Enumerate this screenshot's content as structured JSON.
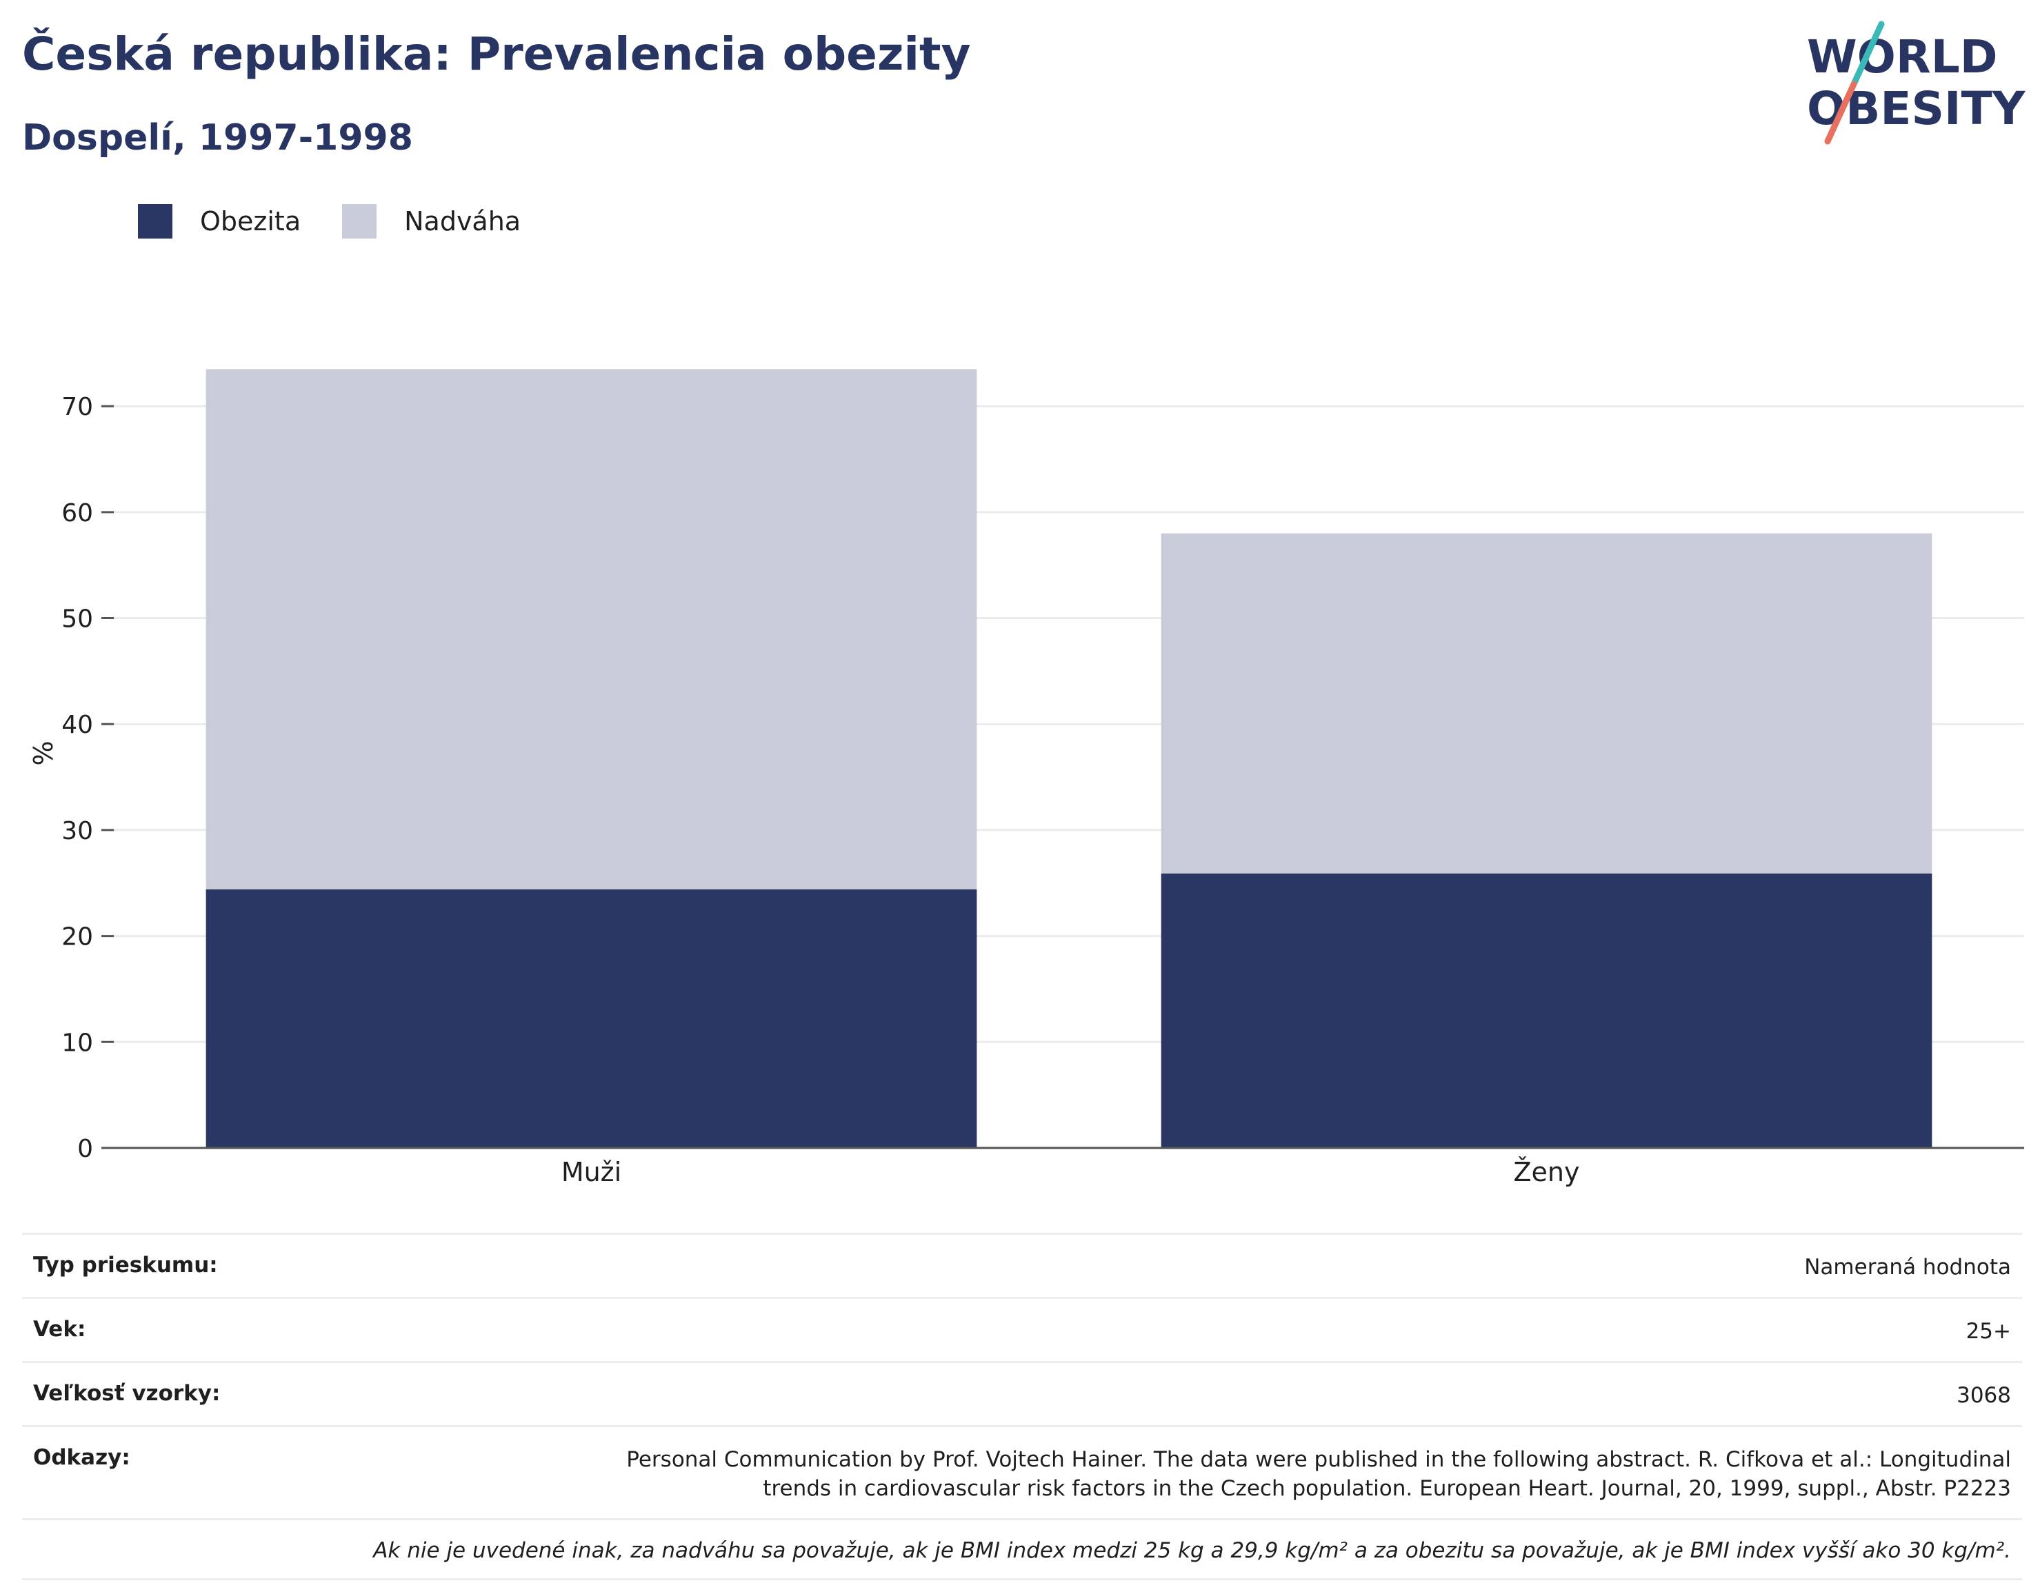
{
  "header": {
    "title": "Česká republika: Prevalencia obezity",
    "subtitle": "Dospelí, 1997-1998"
  },
  "logo": {
    "line1": "WORLD",
    "line2": "OBESITY"
  },
  "colors": {
    "obezita": "#2a3764",
    "nadvaha": "#c9ccd8",
    "text": "#283462",
    "grid": "#ebebee",
    "axis": "#555555",
    "logo_teal": "#3bb8b8",
    "logo_red": "#e8705f"
  },
  "chart_data": {
    "type": "bar",
    "stacked": true,
    "categories": [
      "Muži",
      "Ženy"
    ],
    "series": [
      {
        "name": "Obezita",
        "values": [
          24.4,
          25.9
        ]
      },
      {
        "name": "Nadváha",
        "values": [
          49.1,
          32.1
        ]
      }
    ],
    "ylabel": "%",
    "xlabel": "",
    "ylim": [
      0,
      80
    ],
    "yticks": [
      0,
      10,
      20,
      30,
      40,
      50,
      60,
      70
    ],
    "grid": true,
    "legend_position": "top-left"
  },
  "info": {
    "rows": [
      {
        "label": "Typ prieskumu:",
        "value": "Nameraná hodnota"
      },
      {
        "label": "Vek:",
        "value": "25+"
      },
      {
        "label": "Veľkosť vzorky:",
        "value": "3068"
      },
      {
        "label": "Odkazy:",
        "value": "Personal Communication by Prof. Vojtech Hainer. The data were published in the following abstract. R. Cifkova et al.: Longitudinal trends in cardiovascular risk factors in the Czech population. European Heart. Journal, 20, 1999, suppl., Abstr. P2223"
      }
    ],
    "note": "Ak nie je uvedené inak, za nadváhu sa považuje, ak je BMI index medzi 25 kg a 29,9 kg/m² a za obezitu sa považuje, ak je BMI index vyšší ako 30 kg/m²."
  }
}
